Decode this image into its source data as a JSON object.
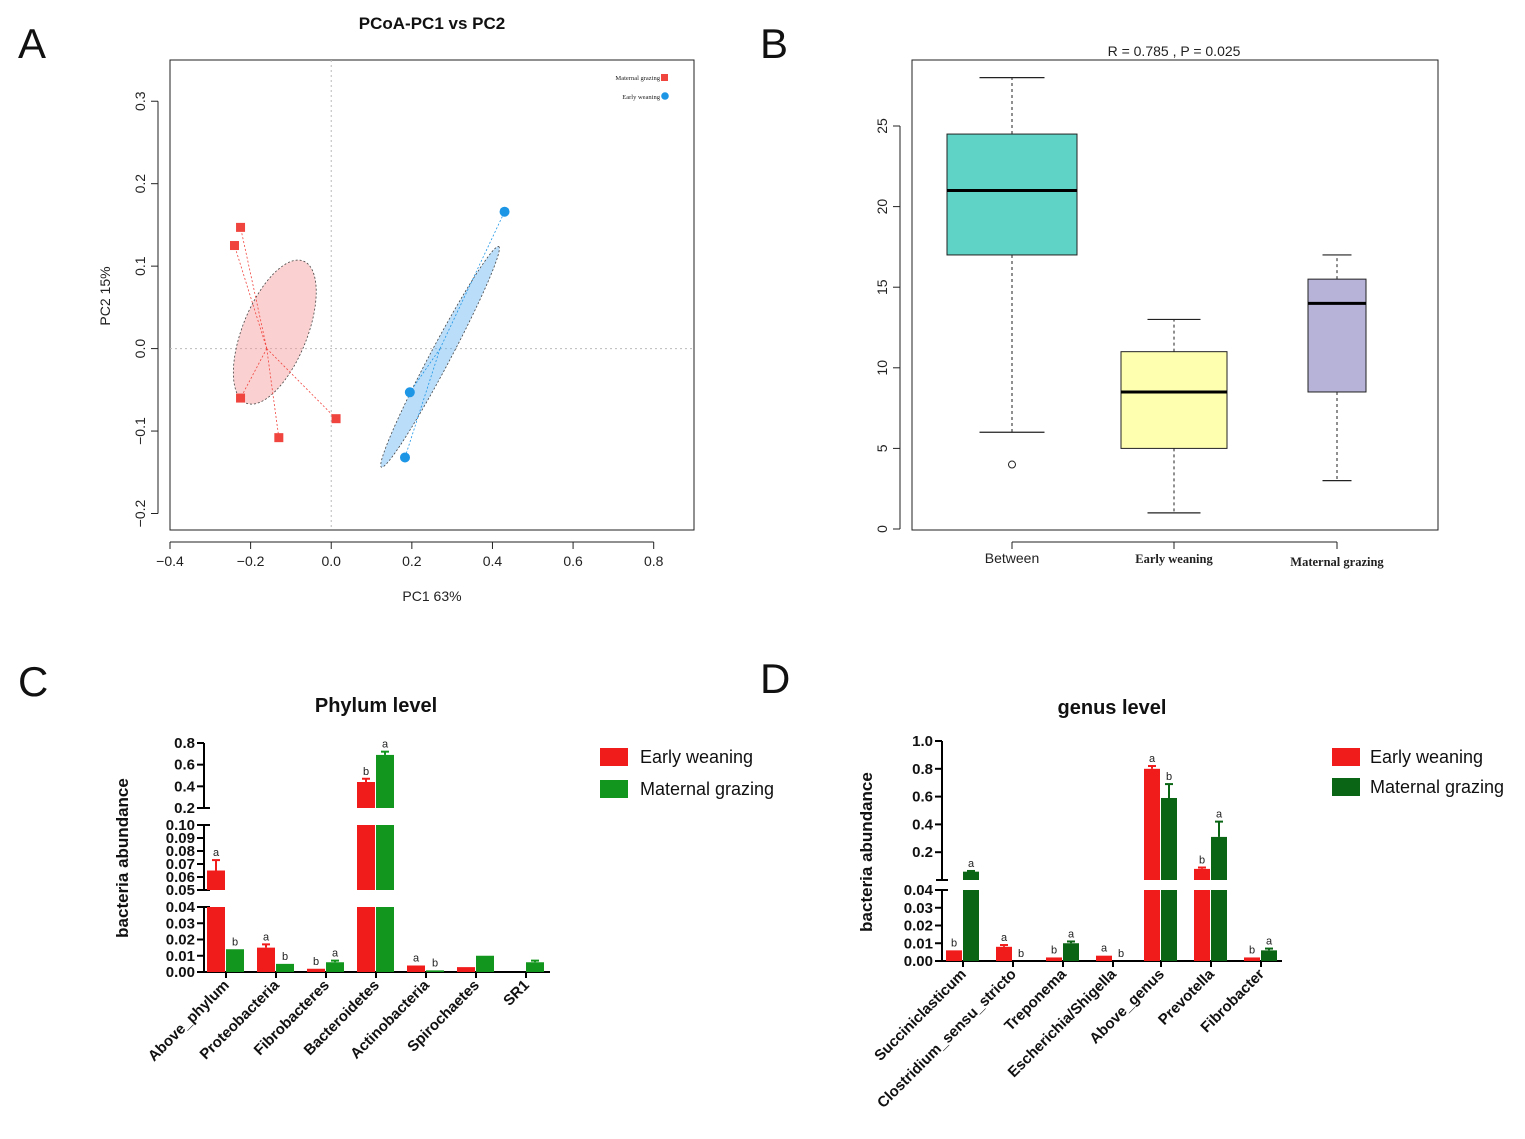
{
  "panels": {
    "a": "A",
    "b": "B",
    "c": "C",
    "d": "D"
  },
  "chart_data": [
    {
      "type": "scatter",
      "panel": "A",
      "title": "PCoA-PC1 vs PC2",
      "xlabel": "PC1 63%",
      "ylabel": "PC2 15%",
      "xlim": [
        -0.4,
        0.9
      ],
      "ylim": [
        -0.22,
        0.35
      ],
      "xticks": [
        -0.4,
        -0.2,
        0.0,
        0.2,
        0.4,
        0.6,
        0.8
      ],
      "xtick_labels": [
        "−0.4",
        "−0.2",
        "0.0",
        "0.2",
        "0.4",
        "0.6",
        "0.8"
      ],
      "yticks": [
        -0.2,
        -0.1,
        0.0,
        0.1,
        0.2,
        0.3
      ],
      "ytick_labels": [
        "−0.2",
        "−0.1",
        "0.0",
        "0.1",
        "0.2",
        "0.3"
      ],
      "legend": [
        "Maternal grazing",
        "Early weaning"
      ],
      "series": [
        {
          "name": "Maternal grazing",
          "color": "#f0453f",
          "marker": "square",
          "centroid": [
            -0.16,
            0.0
          ],
          "points": [
            [
              -0.225,
              0.147
            ],
            [
              -0.24,
              0.125
            ],
            [
              -0.225,
              -0.06
            ],
            [
              -0.13,
              -0.108
            ],
            [
              0.012,
              -0.085
            ]
          ],
          "ellipse": {
            "cx": -0.14,
            "cy": 0.02,
            "rx": 0.19,
            "ry": 0.08,
            "angle_deg": -68
          }
        },
        {
          "name": "Early weaning",
          "color": "#1e96e6",
          "marker": "circle",
          "centroid": [
            0.27,
            0.0
          ],
          "points": [
            [
              0.43,
              0.166
            ],
            [
              0.195,
              -0.053
            ],
            [
              0.183,
              -0.132
            ]
          ],
          "ellipse": {
            "cx": 0.27,
            "cy": -0.01,
            "rx": 0.31,
            "ry": 0.025,
            "angle_deg": -62
          }
        }
      ]
    },
    {
      "type": "box",
      "panel": "B",
      "title": "R = 0.785 , P = 0.025",
      "categories": [
        "Between",
        "Early weaning",
        "Maternal grazing"
      ],
      "ylim": [
        0,
        28
      ],
      "yticks": [
        0,
        5,
        10,
        15,
        20,
        25
      ],
      "ytick_labels": [
        "0",
        "5",
        "10",
        "15",
        "20",
        "25"
      ],
      "boxes": [
        {
          "name": "Between",
          "min": 6,
          "q1": 17,
          "median": 21,
          "q3": 24.5,
          "max": 28,
          "outliers": [
            4
          ],
          "color": "#5fd3c5"
        },
        {
          "name": "Early weaning",
          "min": 1,
          "q1": 5,
          "median": 8.5,
          "q3": 11,
          "max": 13,
          "outliers": [],
          "color": "#ffffb0"
        },
        {
          "name": "Maternal grazing",
          "min": 3,
          "q1": 8.5,
          "median": 14,
          "q3": 15.5,
          "max": 17,
          "outliers": [],
          "color": "#b7b3d8"
        }
      ]
    },
    {
      "type": "bar",
      "panel": "C",
      "title": "Phylum level",
      "ylabel": "bacteria abundance",
      "categories": [
        "Above_phylum",
        "Proteobacteria",
        "Fibrobacteres",
        "Bacteroidetes",
        "Actinobacteria",
        "Spirochaetes",
        "SR1"
      ],
      "series": [
        {
          "name": "Early weaning",
          "color": "#f01c1c",
          "values": [
            0.065,
            0.015,
            0.002,
            0.44,
            0.004,
            0.003,
            0.0
          ],
          "errors": [
            0.008,
            0.002,
            0.0,
            0.03,
            0.0,
            0.0,
            0.0
          ],
          "letters": [
            "a",
            "a",
            "b",
            "b",
            "a",
            "",
            ""
          ]
        },
        {
          "name": "Maternal grazing",
          "color": "#12961e",
          "values": [
            0.014,
            0.005,
            0.006,
            0.69,
            0.001,
            0.01,
            0.006
          ],
          "errors": [
            0.0,
            0.0,
            0.001,
            0.03,
            0.0,
            0.0,
            0.001
          ],
          "letters": [
            "b",
            "b",
            "a",
            "a",
            "b",
            "",
            ""
          ]
        }
      ],
      "segments": [
        {
          "range": [
            0,
            0.04
          ],
          "ticks": [
            "0.00",
            "0.01",
            "0.02",
            "0.03",
            "0.04"
          ],
          "tick_values": [
            0,
            0.01,
            0.02,
            0.03,
            0.04
          ]
        },
        {
          "range": [
            0.05,
            0.1
          ],
          "ticks": [
            "0.05",
            "0.06",
            "0.07",
            "0.08",
            "0.09",
            "0.10"
          ],
          "tick_values": [
            0.05,
            0.06,
            0.07,
            0.08,
            0.09,
            0.1
          ]
        },
        {
          "range": [
            0.2,
            0.8
          ],
          "ticks": [
            "0.2",
            "0.4",
            "0.6",
            "0.8"
          ],
          "tick_values": [
            0.2,
            0.4,
            0.6,
            0.8
          ]
        }
      ]
    },
    {
      "type": "bar",
      "panel": "D",
      "title": "genus level",
      "ylabel": "bacteria abundance",
      "categories": [
        "Succiniclasticum",
        "Clostridium_sensu_stricto",
        "Treponema",
        "Escherichia/Shigella",
        "Above_genus",
        "Prevotella",
        "Fibrobacter"
      ],
      "series": [
        {
          "name": "Early weaning",
          "color": "#f01c1c",
          "values": [
            0.006,
            0.008,
            0.002,
            0.003,
            0.8,
            0.08,
            0.002
          ],
          "errors": [
            0.0,
            0.001,
            0.0,
            0.0,
            0.02,
            0.01,
            0.0
          ],
          "letters": [
            "b",
            "a",
            "b",
            "a",
            "a",
            "b",
            "b"
          ]
        },
        {
          "name": "Maternal grazing",
          "color": "#0a6614",
          "values": [
            0.06,
            0.0,
            0.01,
            0.0,
            0.59,
            0.31,
            0.006
          ],
          "errors": [
            0.005,
            0.0,
            0.001,
            0.0,
            0.1,
            0.11,
            0.001
          ],
          "letters": [
            "a",
            "b",
            "a",
            "b",
            "b",
            "a",
            "a"
          ]
        }
      ],
      "segments": [
        {
          "range": [
            0,
            0.04
          ],
          "ticks": [
            "0.00",
            "0.01",
            "0.02",
            "0.03",
            "0.04"
          ],
          "tick_values": [
            0,
            0.01,
            0.02,
            0.03,
            0.04
          ]
        },
        {
          "range": [
            0.0,
            1.0
          ],
          "ticks": [
            "0.2",
            "0.4",
            "0.6",
            "0.8",
            "1.0"
          ],
          "tick_values": [
            0.2,
            0.4,
            0.6,
            0.8,
            1.0
          ]
        }
      ]
    }
  ]
}
